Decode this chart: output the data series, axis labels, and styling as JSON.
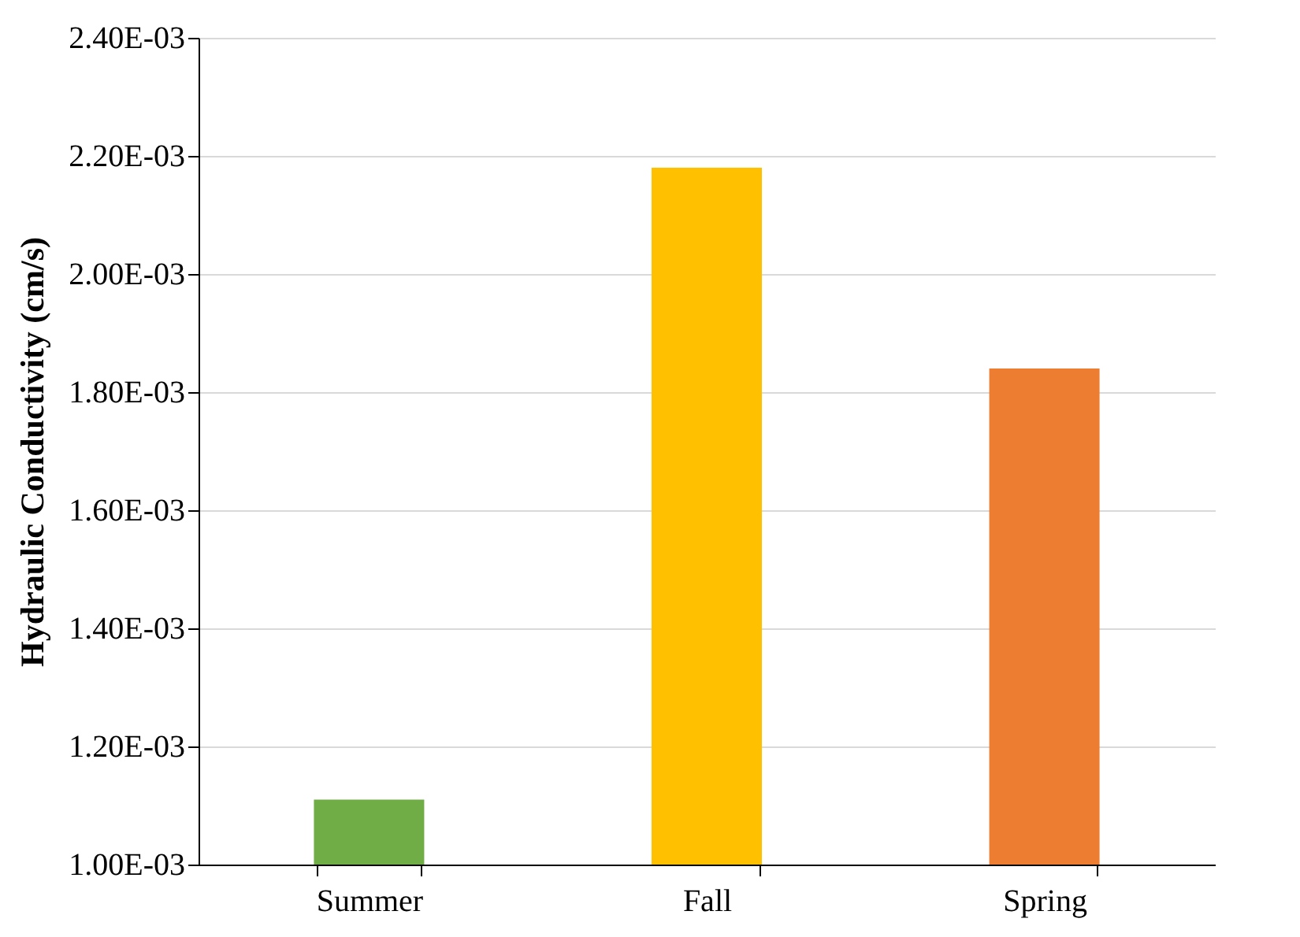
{
  "chart_data": {
    "type": "bar",
    "ylabel": "Hydraulic  Conductivity (cm/s)",
    "categories": [
      "Summer",
      "Fall",
      "Spring"
    ],
    "values": [
      0.00111,
      0.00218,
      0.00184
    ],
    "colors": [
      "#70ad47",
      "#ffc000",
      "#ed7d31"
    ],
    "ylim": [
      0.001,
      0.0024
    ],
    "yticks": [
      {
        "value": 0.001,
        "label": "1.00E-03"
      },
      {
        "value": 0.0012,
        "label": "1.20E-03"
      },
      {
        "value": 0.0014,
        "label": "1.40E-03"
      },
      {
        "value": 0.0016,
        "label": "1.60E-03"
      },
      {
        "value": 0.0018,
        "label": "1.80E-03"
      },
      {
        "value": 0.002,
        "label": "2.00E-03"
      },
      {
        "value": 0.0022,
        "label": "2.20E-03"
      },
      {
        "value": 0.0024,
        "label": "2.40E-03"
      }
    ],
    "grid": "y"
  }
}
